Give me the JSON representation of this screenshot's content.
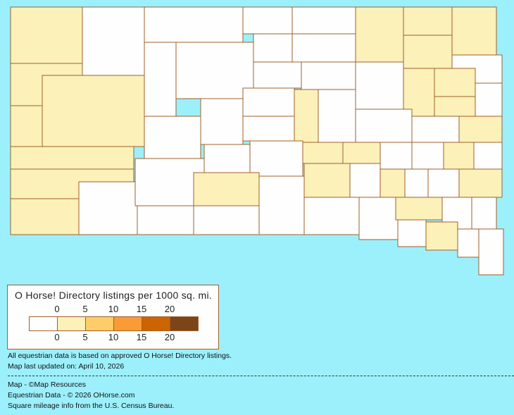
{
  "legend": {
    "title": "O Horse! Directory listings per 1000 sq. mi.",
    "ticks": [
      "0",
      "5",
      "10",
      "15",
      "20"
    ],
    "colors": [
      "#fefefe",
      "#fbf1b9",
      "#fccd68",
      "#fb9b35",
      "#cc6402",
      "#7c4519"
    ],
    "border_color": "#a0602a"
  },
  "notes": {
    "data_basis": "All equestrian data is based on approved O Horse! Directory listings.",
    "updated": "Map last updated on: April 10, 2026",
    "map_credit": "Map - ©Map Resources",
    "data_credit": "Equestrian Data - © 2026 OHorse.com",
    "census_credit": "Square mileage info from the U.S. Census Bureau."
  },
  "colors": {
    "background": "#9cf0fc",
    "county_border": "#a0602a"
  }
}
